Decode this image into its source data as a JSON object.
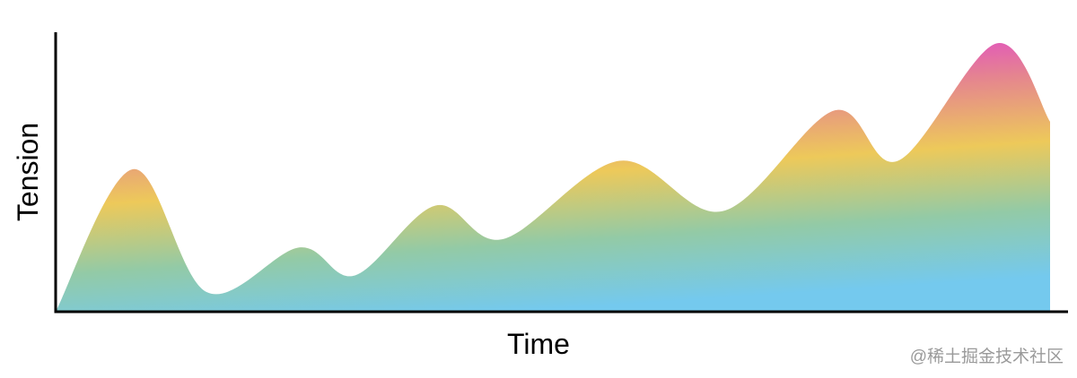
{
  "chart_data": {
    "type": "area",
    "x_label": "Time",
    "y_label": "Tension",
    "x": [
      0,
      7.8,
      15.2,
      24.5,
      30.1,
      38.2,
      45,
      56.7,
      67.1,
      78.3,
      84.7,
      94.6,
      100
    ],
    "values": [
      0,
      51,
      7,
      23,
      13,
      38,
      26,
      54,
      36,
      72,
      54,
      96,
      68
    ],
    "xlim": [
      0,
      100
    ],
    "ylim": [
      0,
      100
    ],
    "colors": [
      "#e03ad8",
      "#e5858f",
      "#edc95a",
      "#93caa6",
      "#74c9ee"
    ]
  },
  "watermark": "@稀土掘金技术社区"
}
